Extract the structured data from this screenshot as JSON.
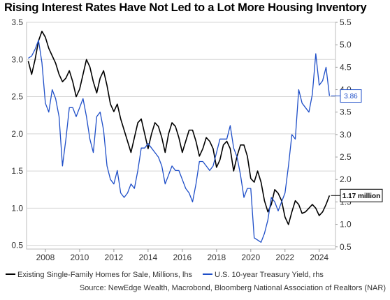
{
  "chart_data": {
    "type": "line",
    "title": "Rising Interest Rates Have Not Led to a Lot More Housing Inventory",
    "xlabel": "",
    "ylabel": "",
    "x_range": [
      2006.9,
      2024.95
    ],
    "x_ticks": [
      "2008",
      "2010",
      "2012",
      "2014",
      "2016",
      "2018",
      "2020",
      "2022",
      "2024"
    ],
    "y_left": {
      "range": [
        0.45,
        3.5
      ],
      "ticks": [
        "0.5",
        "1.0",
        "1.5",
        "2.0",
        "2.5",
        "3.0",
        "3.5"
      ]
    },
    "y_right": {
      "range": [
        0.45,
        5.5
      ],
      "ticks": [
        "0.5",
        "1.0",
        "1.5",
        "2.0",
        "2.5",
        "3.0",
        "3.5",
        "4.0",
        "4.5",
        "5.0",
        "5.5"
      ]
    },
    "grid": true,
    "legend_position": "bottom",
    "series": [
      {
        "name": "Existing Single-Family Homes for Sale, Millions, lhs",
        "axis": "left",
        "color": "#000000",
        "x": [
          2007.0,
          2007.2,
          2007.4,
          2007.6,
          2007.8,
          2008.0,
          2008.2,
          2008.4,
          2008.6,
          2008.8,
          2009.0,
          2009.2,
          2009.4,
          2009.6,
          2009.8,
          2010.0,
          2010.2,
          2010.4,
          2010.6,
          2010.8,
          2011.0,
          2011.2,
          2011.4,
          2011.6,
          2011.8,
          2012.0,
          2012.2,
          2012.4,
          2012.6,
          2012.8,
          2013.0,
          2013.2,
          2013.4,
          2013.6,
          2013.8,
          2014.0,
          2014.2,
          2014.4,
          2014.6,
          2014.8,
          2015.0,
          2015.2,
          2015.4,
          2015.6,
          2015.8,
          2016.0,
          2016.2,
          2016.4,
          2016.6,
          2016.8,
          2017.0,
          2017.2,
          2017.4,
          2017.6,
          2017.8,
          2018.0,
          2018.2,
          2018.4,
          2018.6,
          2018.8,
          2019.0,
          2019.2,
          2019.4,
          2019.6,
          2019.8,
          2020.0,
          2020.2,
          2020.4,
          2020.6,
          2020.8,
          2021.0,
          2021.2,
          2021.4,
          2021.6,
          2021.8,
          2022.0,
          2022.2,
          2022.4,
          2022.6,
          2022.8,
          2023.0,
          2023.2,
          2023.4,
          2023.6,
          2023.8,
          2024.0,
          2024.2,
          2024.4,
          2024.6
        ],
        "values": [
          2.98,
          2.8,
          3.0,
          3.25,
          3.38,
          3.3,
          3.15,
          3.05,
          2.95,
          2.8,
          2.7,
          2.75,
          2.85,
          2.7,
          2.5,
          2.6,
          2.8,
          3.0,
          2.9,
          2.7,
          2.55,
          2.75,
          2.85,
          2.65,
          2.4,
          2.3,
          2.4,
          2.2,
          2.05,
          1.9,
          1.75,
          1.95,
          2.15,
          2.2,
          2.0,
          1.8,
          2.0,
          2.15,
          2.1,
          1.95,
          1.75,
          2.0,
          2.15,
          2.1,
          1.95,
          1.75,
          1.9,
          2.05,
          2.05,
          1.9,
          1.7,
          1.8,
          1.95,
          1.9,
          1.8,
          1.55,
          1.65,
          1.85,
          1.9,
          1.8,
          1.5,
          1.7,
          1.85,
          1.85,
          1.7,
          1.4,
          1.35,
          1.5,
          1.35,
          1.1,
          0.95,
          1.05,
          1.25,
          1.2,
          1.1,
          0.88,
          0.78,
          0.95,
          1.1,
          1.05,
          0.93,
          0.95,
          1.0,
          1.05,
          1.0,
          0.9,
          0.95,
          1.05,
          1.17
        ],
        "label": "1.17 million"
      },
      {
        "name": "U.S. 10-year Treasury Yield, rhs",
        "axis": "right",
        "color": "#1f4fc8",
        "x": [
          2007.0,
          2007.2,
          2007.4,
          2007.6,
          2007.8,
          2008.0,
          2008.2,
          2008.4,
          2008.6,
          2008.8,
          2009.0,
          2009.2,
          2009.4,
          2009.6,
          2009.8,
          2010.0,
          2010.2,
          2010.4,
          2010.6,
          2010.8,
          2011.0,
          2011.2,
          2011.4,
          2011.6,
          2011.8,
          2012.0,
          2012.2,
          2012.4,
          2012.6,
          2012.8,
          2013.0,
          2013.2,
          2013.4,
          2013.6,
          2013.8,
          2014.0,
          2014.2,
          2014.4,
          2014.6,
          2014.8,
          2015.0,
          2015.2,
          2015.4,
          2015.6,
          2015.8,
          2016.0,
          2016.2,
          2016.4,
          2016.6,
          2016.8,
          2017.0,
          2017.2,
          2017.4,
          2017.6,
          2017.8,
          2018.0,
          2018.2,
          2018.4,
          2018.6,
          2018.8,
          2019.0,
          2019.2,
          2019.4,
          2019.6,
          2019.8,
          2020.0,
          2020.2,
          2020.4,
          2020.6,
          2020.8,
          2021.0,
          2021.2,
          2021.4,
          2021.6,
          2021.8,
          2022.0,
          2022.2,
          2022.4,
          2022.6,
          2022.8,
          2023.0,
          2023.2,
          2023.4,
          2023.6,
          2023.8,
          2024.0,
          2024.2,
          2024.4,
          2024.6
        ],
        "values": [
          4.7,
          4.75,
          4.9,
          5.1,
          4.6,
          3.7,
          3.5,
          4.0,
          3.8,
          3.4,
          2.3,
          2.9,
          3.6,
          3.6,
          3.4,
          3.6,
          3.8,
          3.4,
          2.9,
          2.6,
          3.4,
          3.5,
          3.1,
          2.3,
          2.0,
          1.9,
          2.2,
          1.7,
          1.6,
          1.7,
          1.9,
          1.8,
          2.2,
          2.7,
          2.7,
          2.8,
          2.7,
          2.6,
          2.5,
          2.3,
          1.9,
          2.1,
          2.3,
          2.2,
          2.2,
          2.0,
          1.8,
          1.7,
          1.5,
          1.9,
          2.4,
          2.4,
          2.3,
          2.2,
          2.3,
          2.6,
          2.9,
          2.9,
          2.9,
          3.2,
          2.7,
          2.5,
          2.1,
          1.6,
          1.8,
          1.8,
          0.7,
          0.65,
          0.6,
          0.8,
          1.1,
          1.6,
          1.5,
          1.3,
          1.5,
          1.7,
          2.3,
          3.0,
          2.9,
          4.0,
          3.7,
          3.6,
          3.5,
          3.9,
          4.8,
          4.1,
          4.2,
          4.5,
          3.86
        ],
        "label": "3.86"
      }
    ],
    "source": "Source: NewEdge Wealth, Macrobond, Bloomberg National Association of Realtors (NAR)"
  }
}
